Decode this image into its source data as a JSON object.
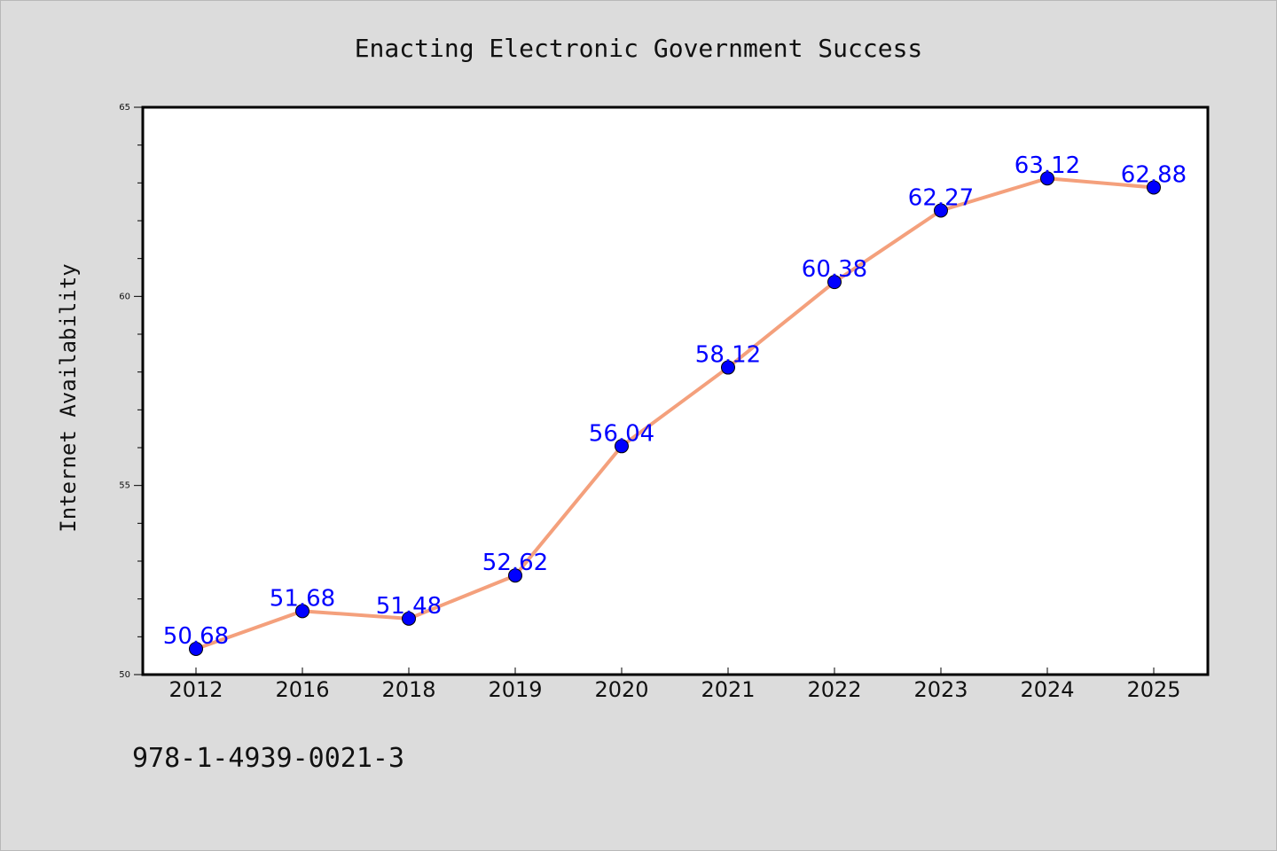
{
  "chart_data": {
    "type": "line",
    "title": "Enacting Electronic Government Success",
    "xlabel": "",
    "ylabel": "Internet Availability",
    "categories": [
      "2012",
      "2016",
      "2018",
      "2019",
      "2020",
      "2021",
      "2022",
      "2023",
      "2024",
      "2025"
    ],
    "series": [
      {
        "values": [
          50.68,
          51.68,
          51.48,
          52.62,
          56.04,
          58.12,
          60.38,
          62.27,
          63.12,
          62.88
        ],
        "data_labels": [
          "50.68",
          "51.68",
          "51.48",
          "52.62",
          "56.04",
          "58.12",
          "60.38",
          "62.27",
          "63.12",
          "62.88"
        ],
        "line_color": "#f4a07c",
        "marker_color": "#0000ff"
      }
    ],
    "ylim": [
      50,
      65
    ],
    "yticks": [
      "50",
      "55",
      "60",
      "65"
    ],
    "grid": false,
    "legend": "none"
  },
  "footer": {
    "code": "978-1-4939-0021-3"
  },
  "colors": {
    "background": "#dcdcdc",
    "plot_background": "#ffffff",
    "line": "#f4a07c",
    "marker": "#0000ff",
    "data_label": "#0000ff"
  }
}
